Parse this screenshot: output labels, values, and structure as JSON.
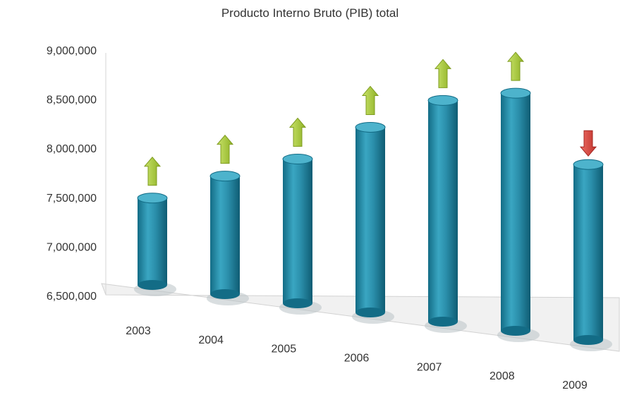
{
  "chart_data": {
    "type": "bar",
    "title": "Producto Interno Bruto (PIB) total",
    "xlabel": "",
    "ylabel": "",
    "categories": [
      "2003",
      "2004",
      "2005",
      "2006",
      "2007",
      "2008",
      "2009"
    ],
    "values": [
      7500000,
      7750000,
      7950000,
      8300000,
      8600000,
      8700000,
      8000000
    ],
    "trend": [
      "up",
      "up",
      "up",
      "up",
      "up",
      "up",
      "down"
    ],
    "ylim": [
      6500000,
      9000000
    ],
    "yticks": [
      "6,500,000",
      "7,000,000",
      "7,500,000",
      "8,000,000",
      "8,500,000",
      "9,000,000"
    ],
    "grid": false,
    "legend": "none",
    "colors": {
      "bar": "#2b8fab",
      "bar_dark": "#136c86",
      "bar_light": "#4db3cc",
      "arrow_up": "#a9c93a",
      "arrow_down": "#d6443e",
      "floor": "#dddddd"
    }
  }
}
